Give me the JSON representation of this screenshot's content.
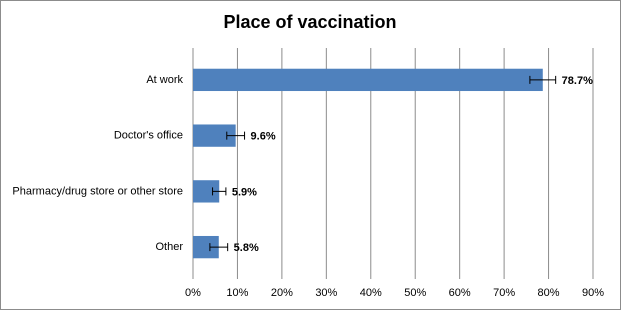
{
  "chart_data": {
    "type": "bar",
    "orientation": "horizontal",
    "title": "Place of vaccination",
    "categories": [
      "At work",
      "Doctor's office",
      "Pharmacy/drug store or other store",
      "Other"
    ],
    "values": [
      78.7,
      9.6,
      5.9,
      5.8
    ],
    "value_labels": [
      "78.7%",
      "9.6%",
      "5.9%",
      "5.8%"
    ],
    "errors": [
      2.9,
      2,
      1.5,
      2
    ],
    "color": "#4f81bd",
    "xlim": [
      0,
      90
    ],
    "xticks": [
      {
        "value": 0,
        "label": "0%"
      },
      {
        "value": 10,
        "label": "10%"
      },
      {
        "value": 20,
        "label": "20%"
      },
      {
        "value": 30,
        "label": "30%"
      },
      {
        "value": 40,
        "label": "40%"
      },
      {
        "value": 50,
        "label": "50%"
      },
      {
        "value": 60,
        "label": "60%"
      },
      {
        "value": 70,
        "label": "70%"
      },
      {
        "value": 80,
        "label": "80%"
      },
      {
        "value": 90,
        "label": "90%"
      }
    ],
    "grid": true
  }
}
